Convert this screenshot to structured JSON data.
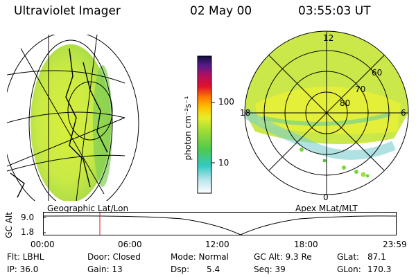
{
  "header": {
    "instrument": "Ultraviolet Imager",
    "date": "02 May 00",
    "time": "03:55:03 UT"
  },
  "colorbar": {
    "unit_label": "photon cm⁻²s⁻¹",
    "ticks": [
      "100",
      "10"
    ]
  },
  "geo_panel": {
    "label": "Geographic Lat/Lon"
  },
  "polar_panel": {
    "label": "Apex MLat/MLT",
    "mlt_labels": [
      "12",
      "18",
      "6",
      "0"
    ],
    "lat_labels": [
      "60",
      "70",
      "80"
    ]
  },
  "altitude_plot": {
    "ylabel": "GC Alt",
    "yticks": [
      "9.0",
      "1.8"
    ],
    "xticks": [
      "00:00",
      "06:00",
      "12:00",
      "18:00",
      "23:59"
    ]
  },
  "info": {
    "flt": "Flt: LBHL",
    "ip": "IP: 36.0",
    "door": "Door: Closed",
    "gain": "Gain: 13",
    "mode": "Mode: Normal",
    "dsp_label": "Dsp:",
    "dsp_value": "5.4",
    "gc_alt": "GC Alt: 9.3 Re",
    "seq": "Seq: 39",
    "glat_label": "GLat:",
    "glat_value": "87.1",
    "glon_label": "GLon:",
    "glon_value": "170.3"
  }
}
